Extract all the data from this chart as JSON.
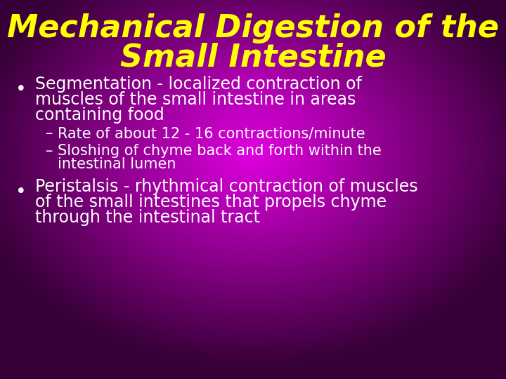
{
  "title_line1": "Mechanical Digestion of the",
  "title_line2": "Small Intestine",
  "title_color": "#FFFF00",
  "title_fontsize": 32,
  "text_color": "#ffffff",
  "body_fontsize": 17,
  "sub_fontsize": 15,
  "bullet1_line1": "Segmentation - localized contraction of",
  "bullet1_line2": "muscles of the small intestine in areas",
  "bullet1_line3": "containing food",
  "sub1": "Rate of about 12 - 16 contractions/minute",
  "sub2_line1": "Sloshing of chyme back and forth within the",
  "sub2_line2": "intestinal lumen",
  "bullet2_line1": "Peristalsis - rhythmical contraction of muscles",
  "bullet2_line2": "of the small intestines that propels chyme",
  "bullet2_line3": "through the intestinal tract"
}
